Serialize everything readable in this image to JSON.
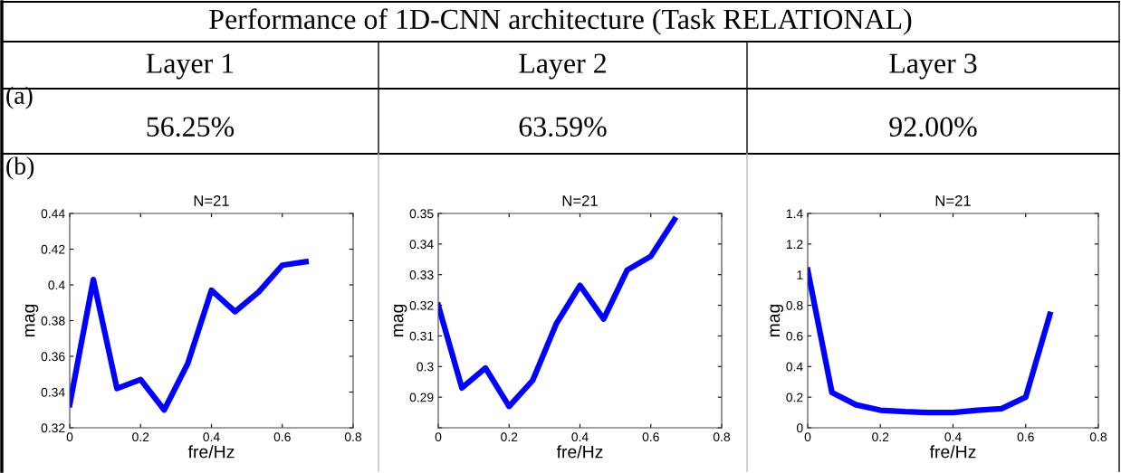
{
  "chart_data": [
    {
      "type": "other",
      "title": "Performance of 1D-CNN architecture (Task RELATIONAL)",
      "categories": [
        "Layer 1",
        "Layer 2",
        "Layer 3"
      ],
      "annotations": [
        "(a)",
        "56.25%",
        "63.59%",
        "92.00%",
        "(b)"
      ]
    },
    {
      "type": "line",
      "title": "N=21",
      "xlabel": "fre/Hz",
      "ylabel": "mag",
      "x": [
        0,
        0.0667,
        0.1333,
        0.2,
        0.2667,
        0.3333,
        0.4,
        0.4667,
        0.5333,
        0.6,
        0.6667
      ],
      "series": [
        {
          "color": "#0000ff",
          "values": [
            0.333,
            0.403,
            0.342,
            0.347,
            0.33,
            0.356,
            0.397,
            0.385,
            0.396,
            0.411,
            0.413
          ]
        }
      ],
      "xlim": [
        0,
        0.8
      ],
      "xticks": [
        0,
        0.2,
        0.4,
        0.6,
        0.8
      ],
      "ylim": [
        0.32,
        0.44
      ],
      "yticks": [
        0.32,
        0.34,
        0.36,
        0.38,
        0.4,
        0.42,
        0.44
      ],
      "marker": "none",
      "line_style": "solid"
    },
    {
      "type": "line",
      "title": "N=21",
      "xlabel": "fre/Hz",
      "ylabel": "mag",
      "x": [
        0,
        0.0667,
        0.1333,
        0.2,
        0.2667,
        0.3333,
        0.4,
        0.4667,
        0.5333,
        0.6,
        0.6667
      ],
      "series": [
        {
          "color": "#0000ff",
          "values": [
            0.32,
            0.293,
            0.2995,
            0.287,
            0.2955,
            0.314,
            0.3265,
            0.3155,
            0.3315,
            0.336,
            0.348
          ]
        }
      ],
      "xlim": [
        0,
        0.8
      ],
      "xticks": [
        0,
        0.2,
        0.4,
        0.6,
        0.8
      ],
      "ylim": [
        0.28,
        0.35
      ],
      "yticks": [
        {
          "value": 0.28,
          "label": null
        },
        0.29,
        0.3,
        0.31,
        0.32,
        0.33,
        0.34,
        0.35
      ],
      "marker": "none",
      "line_style": "solid"
    },
    {
      "type": "line",
      "title": "N=21",
      "xlabel": "fre/Hz",
      "ylabel": "mag",
      "x": [
        0,
        0.0667,
        0.1333,
        0.2,
        0.2667,
        0.3333,
        0.4,
        0.4667,
        0.5333,
        0.6,
        0.6667
      ],
      "series": [
        {
          "color": "#0000ff",
          "values": [
            1.03,
            0.23,
            0.15,
            0.115,
            0.105,
            0.1,
            0.1,
            0.115,
            0.125,
            0.2,
            0.74
          ]
        }
      ],
      "xlim": [
        0,
        0.8
      ],
      "xticks": [
        0,
        0.2,
        0.4,
        0.6,
        0.8
      ],
      "ylim": [
        0,
        1.4
      ],
      "yticks": [
        0,
        0.2,
        0.4,
        0.6,
        0.8,
        1,
        1.2,
        1.4
      ],
      "marker": "none",
      "line_style": "solid"
    }
  ]
}
